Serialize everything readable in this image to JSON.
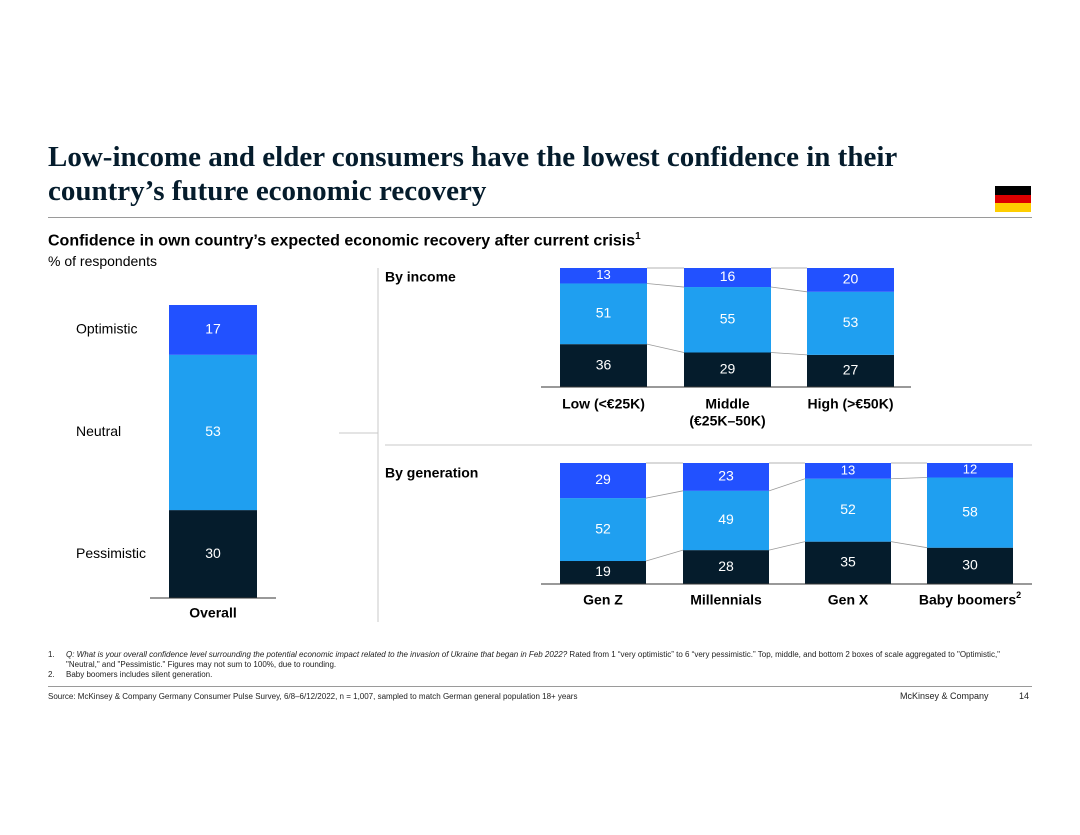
{
  "slide": {
    "title": "Low-income and elder consumers have the lowest confidence in their country’s future economic recovery",
    "subtitle": "Confidence in own country’s expected economic recovery after current crisis",
    "subtitle_sup": "1",
    "unit": "% of respondents",
    "flag_icon": "germany-flag-icon",
    "flag_colors": [
      "#000000",
      "#dd0000",
      "#ffce00"
    ]
  },
  "colors": {
    "optimistic": "#2251ff",
    "neutral": "#1f9ff0",
    "pessimistic": "#051c2c",
    "connector": "#9a9a9a"
  },
  "chart_data": [
    {
      "type": "bar",
      "stacked": true,
      "title": "Overall",
      "categories": [
        "Overall"
      ],
      "series": [
        {
          "name": "Pessimistic",
          "values": [
            30
          ]
        },
        {
          "name": "Neutral",
          "values": [
            53
          ]
        },
        {
          "name": "Optimistic",
          "values": [
            17
          ]
        }
      ],
      "segment_labels": [
        "Optimistic",
        "Neutral",
        "Pessimistic"
      ]
    },
    {
      "type": "bar",
      "stacked": true,
      "title": "By income",
      "categories": [
        "Low (<€25K)",
        "Middle\n(€25K–50K)",
        "High (>€50K)"
      ],
      "series": [
        {
          "name": "Pessimistic",
          "values": [
            36,
            29,
            27
          ]
        },
        {
          "name": "Neutral",
          "values": [
            51,
            55,
            53
          ]
        },
        {
          "name": "Optimistic",
          "values": [
            13,
            16,
            20
          ]
        }
      ]
    },
    {
      "type": "bar",
      "stacked": true,
      "title": "By generation",
      "categories": [
        "Gen Z",
        "Millennials",
        "Gen X",
        "Baby boomers"
      ],
      "category_sup": [
        "",
        "",
        "",
        "2"
      ],
      "series": [
        {
          "name": "Pessimistic",
          "values": [
            19,
            28,
            35,
            30
          ]
        },
        {
          "name": "Neutral",
          "values": [
            52,
            49,
            52,
            58
          ]
        },
        {
          "name": "Optimistic",
          "values": [
            29,
            23,
            13,
            12
          ]
        }
      ]
    }
  ],
  "footnotes": [
    {
      "num": "1.",
      "italic": "Q: What is your overall confidence level surrounding the potential economic impact related to the invasion of Ukraine that began in Feb 2022?",
      "text": " Rated from 1 “very optimistic” to 6 “very pessimistic.” Top, middle, and bottom 2 boxes of scale aggregated to \"Optimistic,\" \"Neutral,\" and \"Pessimistic.\" Figures may not sum to 100%, due to rounding."
    },
    {
      "num": "2.",
      "italic": "",
      "text": "Baby boomers includes silent generation."
    }
  ],
  "source": "Source: McKinsey & Company Germany Consumer Pulse Survey, 6/8–6/12/2022, n = 1,007, sampled to match German general population 18+ years",
  "brand": "McKinsey & Company",
  "page_number": "14"
}
